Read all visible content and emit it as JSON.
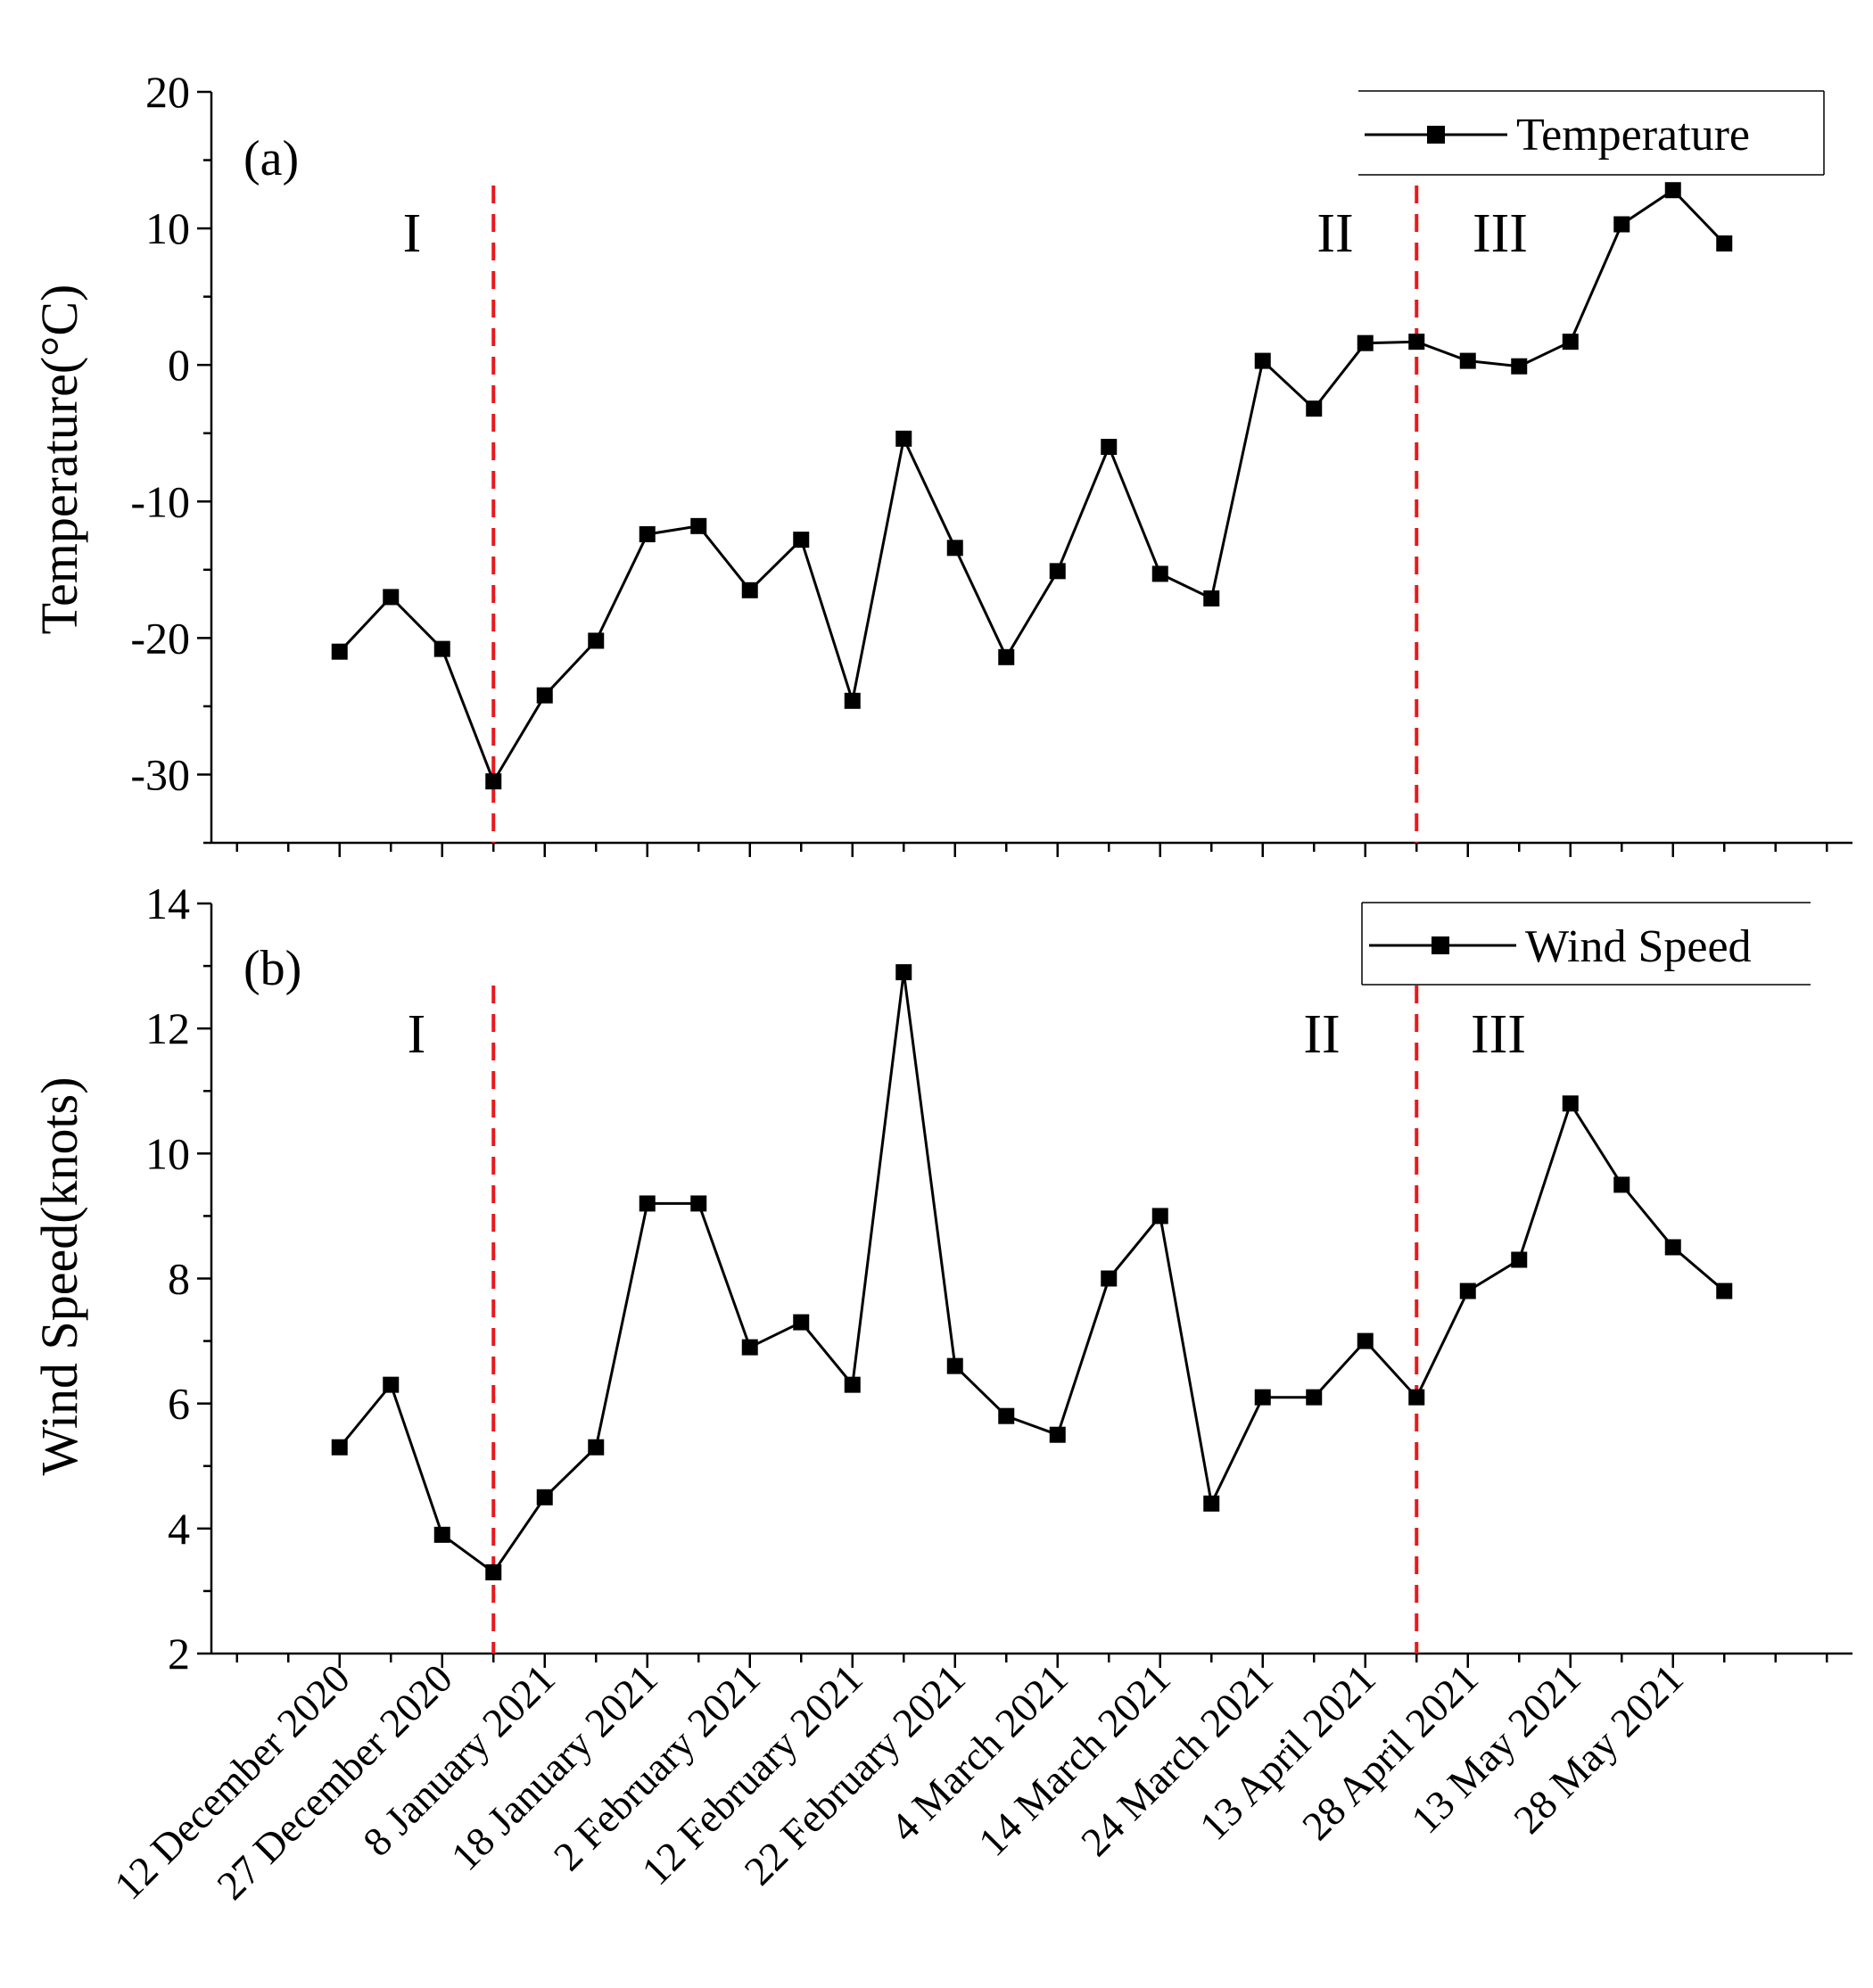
{
  "chart_data": [
    {
      "type": "line",
      "panel_label": "(a)",
      "ylabel": "Temperature(°C)",
      "ylim": [
        -35,
        20
      ],
      "yticks": [
        -30,
        -20,
        -10,
        0,
        10,
        20
      ],
      "legend": "Temperature",
      "legend_position": "top-right",
      "regions": [
        "I",
        "II",
        "III"
      ],
      "x": [
        0,
        1,
        2,
        3,
        4,
        5,
        6,
        7,
        8,
        9,
        10,
        11,
        12,
        13,
        14,
        15,
        16,
        17,
        18,
        19,
        20,
        21,
        22,
        23,
        24,
        25,
        26,
        27
      ],
      "series": [
        {
          "name": "Temperature",
          "values": [
            -21.0,
            -17.0,
            -20.8,
            -30.5,
            -24.2,
            -20.2,
            -12.4,
            -11.8,
            -16.5,
            -12.8,
            -24.6,
            -5.4,
            -13.4,
            -21.4,
            -15.1,
            -6.0,
            -15.3,
            -17.1,
            0.3,
            -3.2,
            1.6,
            1.7,
            0.3,
            -0.1,
            1.7,
            10.3,
            12.8,
            8.9
          ]
        }
      ]
    },
    {
      "type": "line",
      "panel_label": "(b)",
      "ylabel": "Wind Speed(knots)",
      "ylim": [
        2,
        14
      ],
      "yticks": [
        2,
        4,
        6,
        8,
        10,
        12,
        14
      ],
      "legend": "Wind Speed",
      "legend_position": "top-right",
      "regions": [
        "I",
        "II",
        "III"
      ],
      "x": [
        0,
        1,
        2,
        3,
        4,
        5,
        6,
        7,
        8,
        9,
        10,
        11,
        12,
        13,
        14,
        15,
        16,
        17,
        18,
        19,
        20,
        21,
        22,
        23,
        24,
        25,
        26,
        27
      ],
      "series": [
        {
          "name": "Wind Speed",
          "values": [
            5.3,
            6.3,
            3.9,
            3.3,
            4.5,
            5.3,
            9.2,
            9.2,
            6.9,
            7.3,
            6.3,
            12.9,
            6.6,
            5.8,
            5.5,
            8.0,
            9.0,
            4.4,
            6.1,
            6.1,
            7.0,
            6.1,
            7.8,
            8.3,
            10.8,
            9.5,
            8.5,
            7.8
          ]
        }
      ]
    }
  ],
  "x_axis": {
    "categories": [
      "12 December 2020",
      "27 December 2020",
      "8 January 2021",
      "18 January 2021",
      "2 February 2021",
      "12 February 2021",
      "22 February 2021",
      "4 March 2021",
      "14 March 2021",
      "24 March 2021",
      "13 April 2021",
      "28 April 2021",
      "13 May 2021",
      "28 May 2021"
    ],
    "category_positions": [
      0,
      2,
      4,
      6,
      8,
      10,
      12,
      14,
      16,
      18,
      20,
      22,
      24,
      26
    ],
    "xlim": [
      -2.5,
      29.5
    ],
    "dividers": [
      3,
      21
    ]
  },
  "colors": {
    "line": "#000000",
    "marker": "#000000",
    "divider": "#e8191c"
  }
}
